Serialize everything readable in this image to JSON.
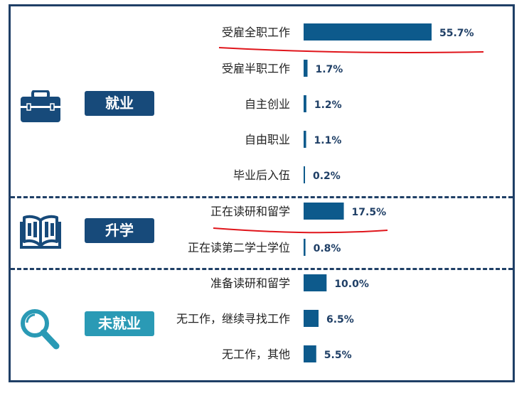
{
  "colors": {
    "bar": "#0d5a8c",
    "frame": "#1f3f66",
    "badge_dark": "#174a7a",
    "badge_light": "#2a9ab5",
    "icon_dark": "#174a7a",
    "icon_light": "#2a9ab5",
    "annotation": "#e0151b"
  },
  "groups": [
    {
      "label": "就业",
      "icon": "briefcase-icon"
    },
    {
      "label": "升学",
      "icon": "open-book-icon"
    },
    {
      "label": "未就业",
      "icon": "magnifier-icon"
    }
  ],
  "chart_data": {
    "type": "bar",
    "orientation": "horizontal",
    "categories": [
      "受雇全职工作",
      "受雇半职工作",
      "自主创业",
      "自由职业",
      "毕业后入伍",
      "正在读研和留学",
      "正在读第二学士学位",
      "准备读研和留学",
      "无工作，继续寻找工作",
      "无工作，其他"
    ],
    "values": [
      55.7,
      1.7,
      1.2,
      1.1,
      0.2,
      17.5,
      0.8,
      10.0,
      6.5,
      5.5
    ],
    "value_labels": [
      "55.7%",
      "1.7%",
      "1.2%",
      "1.1%",
      "0.2%",
      "17.5%",
      "0.8%",
      "10.0%",
      "6.5%",
      "5.5%"
    ],
    "group_of_category": [
      0,
      0,
      0,
      0,
      0,
      1,
      1,
      2,
      2,
      2
    ],
    "xlim": [
      0,
      60
    ],
    "annotations": [
      "red underline under 受雇全职工作",
      "red underline under 正在读研和留学"
    ]
  }
}
